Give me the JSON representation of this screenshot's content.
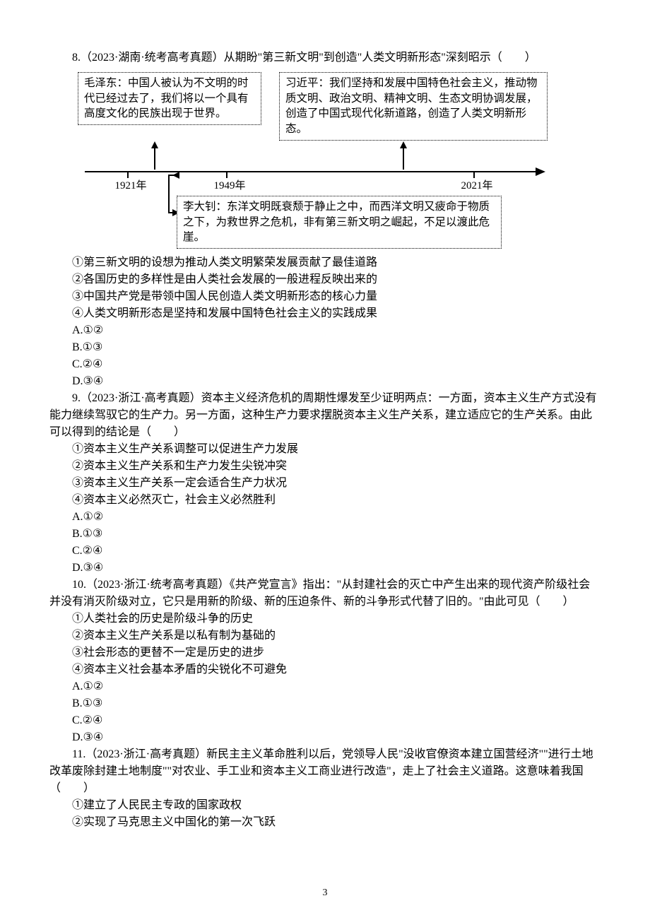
{
  "q8": {
    "stem": "8.（2023·湖南·统考高考真题）从期盼\"第三新文明\"到创造\"人类文明新形态\"深刻昭示（　　）",
    "box_mao": "毛泽东：中国人被认为不文明的时代已经过去了，我们将以一个具有高度文化的民族出现于世界。",
    "box_xi": "习近平：我们坚持和发展中国特色社会主义，推动物质文明、政治文明、精神文明、生态文明协调发展，创造了中国式现代化新道路，创造了人类文明新形态。",
    "box_li": "李大钊：东洋文明既衰颓于静止之中，而西洋文明又疲命于物质之下，为救世界之危机，非有第三新文明之崛起，不足以渡此危崖。",
    "year1": "1921年",
    "year2": "1949年",
    "year3": "2021年",
    "s1": "①第三新文明的设想为推动人类文明繁荣发展贡献了最佳道路",
    "s2": "②各国历史的多样性是由人类社会发展的一般进程反映出来的",
    "s3": "③中国共产党是带领中国人民创造人类文明新形态的核心力量",
    "s4": "④人类文明新形态是坚持和发展中国特色社会主义的实践成果",
    "a": "A.①②",
    "b": "B.①③",
    "c": "C.②④",
    "d": "D.③④"
  },
  "q9": {
    "stem": "9.（2023·浙江·高考真题）资本主义经济危机的周期性爆发至少证明两点：一方面，资本主义生产方式没有能力继续驾驭它的生产力。另一方面，这种生产力要求摆脱资本主义生产关系，建立适应它的生产关系。由此可以得到的结论是（　　）",
    "s1": "①资本主义生产关系调整可以促进生产力发展",
    "s2": "②资本主义生产关系和生产力发生尖锐冲突",
    "s3": "③资本主义生产关系一定会适合生产力状况",
    "s4": "④资本主义必然灭亡，社会主义必然胜利",
    "a": "A.①②",
    "b": "B.①③",
    "c": "C.②④",
    "d": "D.③④"
  },
  "q10": {
    "stem": "10.（2023·浙江·统考高考真题）《共产党宣言》指出：\"从封建社会的灭亡中产生出来的现代资产阶级社会并没有消灭阶级对立，它只是用新的阶级、新的压迫条件、新的斗争形式代替了旧的。\"由此可见（　　）",
    "s1": "①人类社会的历史是阶级斗争的历史",
    "s2": "②资本主义生产关系是以私有制为基础的",
    "s3": "③社会形态的更替不一定是历史的进步",
    "s4": "④资本主义社会基本矛盾的尖锐化不可避免",
    "a": "A.①②",
    "b": "B.①③",
    "c": "C.②④",
    "d": "D.③④"
  },
  "q11": {
    "stem": "11.（2023·浙江·高考真题）新民主主义革命胜利以后，党领导人民\"没收官僚资本建立国营经济\"\"进行土地改革废除封建土地制度\"\"对农业、手工业和资本主义工商业进行改造\"，走上了社会主义道路。这意味着我国（　　）",
    "s1": "①建立了人民民主专政的国家政权",
    "s2": "②实现了马克思主义中国化的第一次飞跃"
  },
  "page_number": "3"
}
